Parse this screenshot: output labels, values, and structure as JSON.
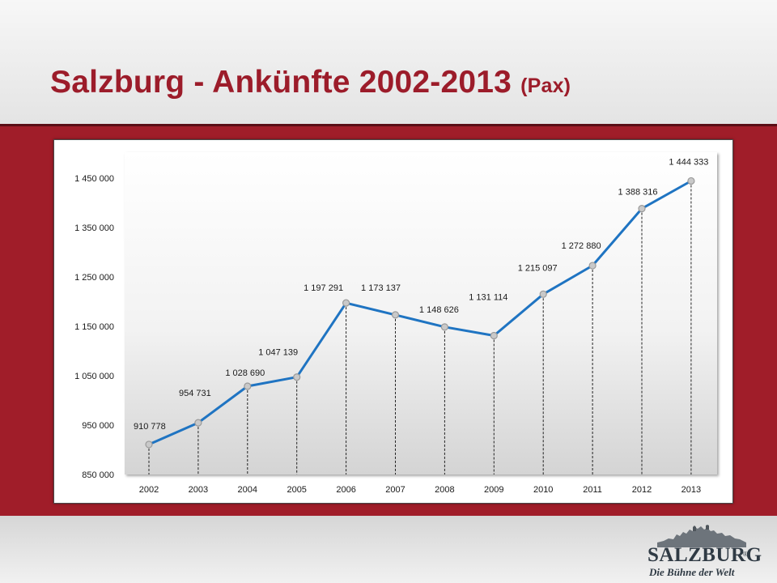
{
  "header": {
    "title": "Salzburg - Ankünfte 2002-2013",
    "title_unit": "(Pax)"
  },
  "colors": {
    "brand_red": "#a01d29",
    "title_red": "#9c1c2a",
    "line_blue": "#1f74c2",
    "marker_gray": "#9a9a9a"
  },
  "logo": {
    "word": "SALZBURG",
    "slogan": "Die Bühne der Welt",
    "registered_mark": "®",
    "icon": "fortress-skyline-icon"
  },
  "chart_data": {
    "type": "line",
    "title": "",
    "xlabel": "",
    "ylabel": "",
    "categories": [
      "2002",
      "2003",
      "2004",
      "2005",
      "2006",
      "2007",
      "2008",
      "2009",
      "2010",
      "2011",
      "2012",
      "2013"
    ],
    "values": [
      910778,
      954731,
      1028690,
      1047139,
      1197291,
      1173137,
      1148626,
      1131114,
      1215097,
      1272880,
      1388316,
      1444333
    ],
    "data_labels": [
      "910 778",
      "954 731",
      "1 028 690",
      "1 047 139",
      "1 197 291",
      "1 173 137",
      "1 148 626",
      "1 131 114",
      "1 215 097",
      "1 272 880",
      "1 388 316",
      "1 444 333"
    ],
    "y_ticks": [
      850000,
      950000,
      1050000,
      1150000,
      1250000,
      1350000,
      1450000
    ],
    "y_tick_labels": [
      "850 000",
      "950 000",
      "1 050 000",
      "1 150 000",
      "1 250 000",
      "1 350 000",
      "1 450 000"
    ],
    "ylim": [
      850000,
      1450000
    ],
    "drop_lines": true,
    "grid": false,
    "legend": "none"
  }
}
